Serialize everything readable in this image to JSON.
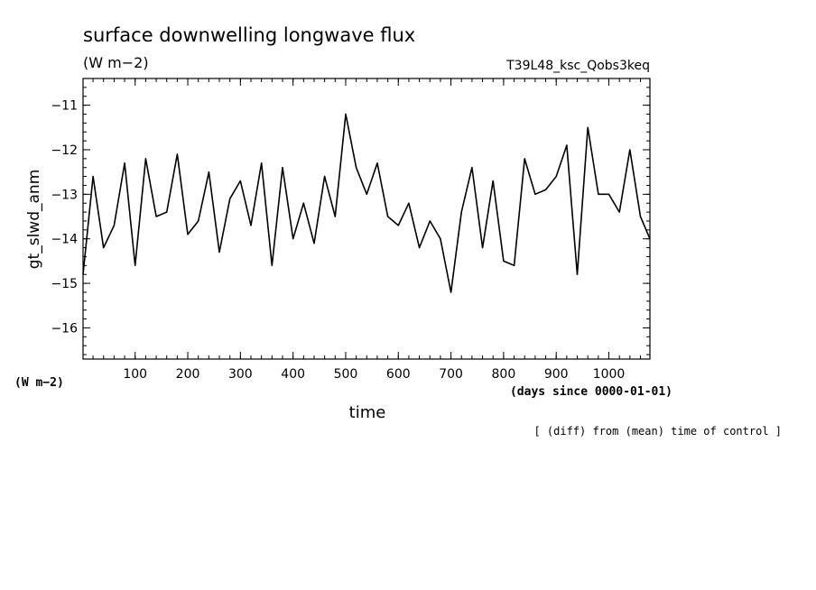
{
  "chart_data": {
    "type": "line",
    "title": "surface downwelling longwave flux",
    "units_label": "(W m−2)",
    "experiment_label": "T39L48_ksc_Qobs3keq",
    "ylabel": "gt_slwd_anm",
    "y_units_label": "(W m−2)",
    "xlabel": "time",
    "x_units_label": "(days since 0000-01-01)",
    "footnote": "[ (diff) from (mean) time of control ]",
    "xlim": [
      1,
      1078
    ],
    "ylim": [
      -16.7,
      -10.4
    ],
    "x_ticks": [
      100,
      200,
      300,
      400,
      500,
      600,
      700,
      800,
      900,
      1000
    ],
    "y_ticks": [
      -16,
      -15,
      -14,
      -13,
      -12,
      -11
    ],
    "grid": false,
    "series": [
      {
        "x": [
          1,
          20,
          40,
          60,
          80,
          100,
          120,
          140,
          160,
          180,
          200,
          220,
          240,
          260,
          280,
          300,
          320,
          340,
          360,
          380,
          400,
          420,
          440,
          460,
          480,
          500,
          520,
          540,
          560,
          580,
          600,
          620,
          640,
          660,
          680,
          700,
          720,
          740,
          760,
          780,
          800,
          820,
          840,
          860,
          880,
          900,
          920,
          940,
          960,
          980,
          1000,
          1020,
          1040,
          1060,
          1078
        ],
        "y": [
          -14.8,
          -12.6,
          -14.2,
          -13.7,
          -12.3,
          -14.6,
          -12.2,
          -13.5,
          -13.4,
          -12.1,
          -13.9,
          -13.6,
          -12.5,
          -14.3,
          -13.1,
          -12.7,
          -13.7,
          -12.3,
          -14.6,
          -12.4,
          -14.0,
          -13.2,
          -14.1,
          -12.6,
          -13.5,
          -11.2,
          -12.4,
          -13.0,
          -12.3,
          -13.5,
          -13.7,
          -13.2,
          -14.2,
          -13.6,
          -14.0,
          -15.2,
          -13.4,
          -12.4,
          -14.2,
          -12.7,
          -14.5,
          -14.6,
          -12.2,
          -13.0,
          -12.9,
          -12.6,
          -11.9,
          -14.8,
          -11.5,
          -13.0,
          -13.0,
          -13.4,
          -12.0,
          -13.5,
          -14.0
        ]
      }
    ]
  }
}
